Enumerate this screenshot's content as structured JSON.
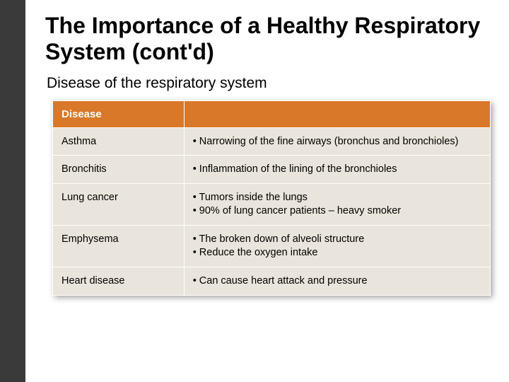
{
  "slide": {
    "title": "The Importance of a Healthy Respiratory System (cont'd)",
    "subtitle": "Disease of the respiratory system",
    "background_color": "#3a3a3a",
    "content_bg": "#ffffff",
    "title_fontsize": 32,
    "subtitle_fontsize": 21
  },
  "table": {
    "type": "table",
    "header_bg": "#d97828",
    "header_color": "#ffffff",
    "cell_bg": "#e9e5dc",
    "cell_color": "#000000",
    "border_color": "#ffffff",
    "columns": [
      {
        "label": "Disease",
        "width": "30%"
      },
      {
        "label": "",
        "width": "70%"
      }
    ],
    "rows": [
      {
        "disease": "Asthma",
        "desc_1": "• Narrowing of the fine airways (bronchus and bronchioles)",
        "desc_2": ""
      },
      {
        "disease": "Bronchitis",
        "desc_1": "• Inflammation of the lining of the bronchioles",
        "desc_2": ""
      },
      {
        "disease": "Lung cancer",
        "desc_1": "• Tumors inside the lungs",
        "desc_2": "• 90% of lung cancer patients – heavy smoker"
      },
      {
        "disease": "Emphysema",
        "desc_1": "• The broken down of alveoli structure",
        "desc_2": "• Reduce the oxygen intake"
      },
      {
        "disease": "Heart disease",
        "desc_1": "• Can cause heart attack and pressure",
        "desc_2": ""
      }
    ]
  }
}
